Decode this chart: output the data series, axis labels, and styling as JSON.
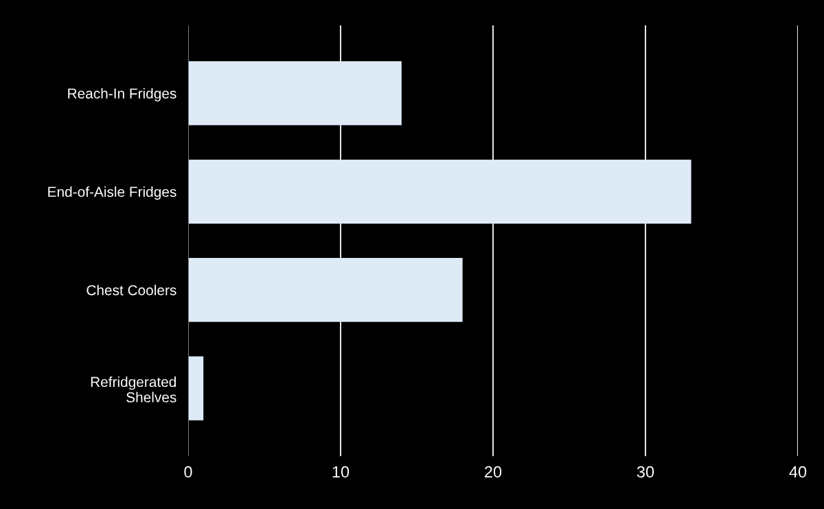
{
  "chart_data": {
    "type": "bar",
    "orientation": "horizontal",
    "categories": [
      "Reach-In Fridges",
      "End-of-Aisle Fridges",
      "Chest Coolers",
      "Refridgerated\nShelves"
    ],
    "values": [
      14,
      33,
      18,
      1
    ],
    "color": "#deebf7",
    "xlim": [
      0,
      40
    ],
    "xticks": [
      0,
      10,
      20,
      30,
      40
    ],
    "grid": "x"
  }
}
